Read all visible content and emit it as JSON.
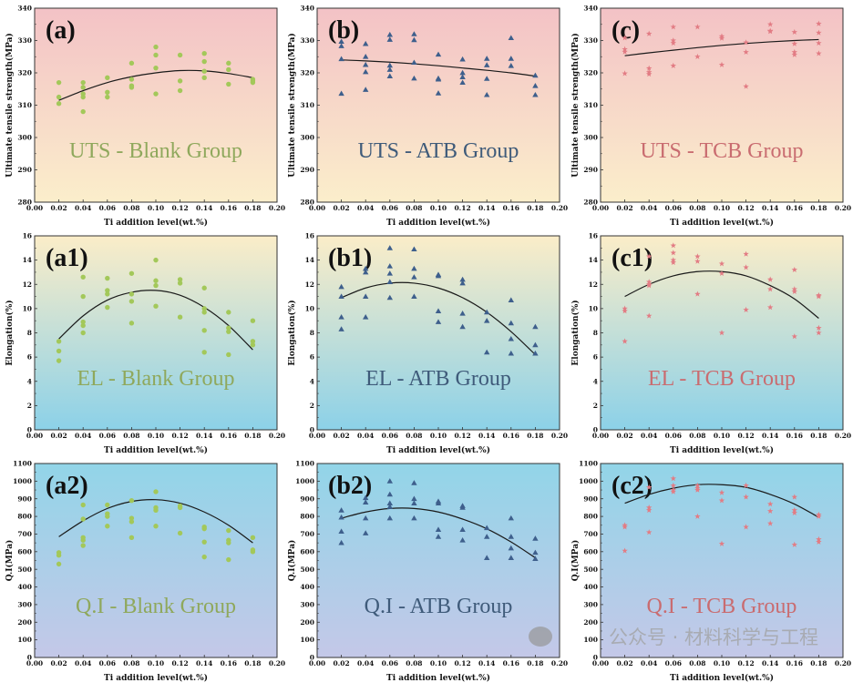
{
  "colors": {
    "blank_marker": "#a3c85a",
    "blank_text": "#8fa85c",
    "atb_marker": "#3e5f8c",
    "atb_text": "#3f5b7a",
    "tcb_marker": "#e27c84",
    "tcb_text": "#c96c70",
    "row1_bg": [
      "#f3c2c6",
      "#fbeecb"
    ],
    "row2_bg": [
      "#fbedc8",
      "#8cd1e8"
    ],
    "row3_bg": [
      "#92d5e8",
      "#c4c8e8"
    ],
    "fit_line": "#1a1a1a"
  },
  "watermark": "公众号 · 材料科学与工程",
  "chart_data": [
    {
      "type": "scatter",
      "panel_label": "(a)",
      "group_label": "UTS - Blank Group",
      "ylabel": "Ultimate tensile strength(MPa)",
      "xlabel": "Ti addition level(wt.%)",
      "xlim": [
        0,
        0.2
      ],
      "ylim": [
        280,
        340
      ],
      "ystep": 10,
      "marker": "circle",
      "group": "blank",
      "row": 0,
      "col": 0,
      "points": [
        {
          "x": 0.02,
          "y": [
            317,
            312.5,
            310.5
          ]
        },
        {
          "x": 0.04,
          "y": [
            317,
            315.5,
            313.5,
            312.5,
            308
          ]
        },
        {
          "x": 0.06,
          "y": [
            318.5,
            314,
            312.5
          ]
        },
        {
          "x": 0.08,
          "y": [
            323,
            318,
            316,
            315.5
          ]
        },
        {
          "x": 0.1,
          "y": [
            328,
            325.5,
            321.5,
            313.5
          ]
        },
        {
          "x": 0.12,
          "y": [
            325.5,
            317.5,
            314.5
          ]
        },
        {
          "x": 0.14,
          "y": [
            326,
            323.5,
            320.5,
            318.5
          ]
        },
        {
          "x": 0.16,
          "y": [
            323,
            321,
            316.5
          ]
        },
        {
          "x": 0.18,
          "y": [
            318,
            317.5,
            317
          ]
        }
      ],
      "fit": [
        311.5,
        314.5,
        317,
        318.8,
        320,
        320.7,
        320.6,
        319.8,
        318.5
      ]
    },
    {
      "type": "scatter",
      "panel_label": "(b)",
      "group_label": "UTS - ATB Group",
      "ylabel": "Ultimate tensile strength(MPa)",
      "xlabel": "Ti addition level(wt.%)",
      "xlim": [
        0,
        0.2
      ],
      "ylim": [
        280,
        340
      ],
      "ystep": 10,
      "marker": "triangle",
      "group": "atb",
      "row": 0,
      "col": 1,
      "points": [
        {
          "x": 0.02,
          "y": [
            329.7,
            328.3,
            324.3,
            313.6
          ]
        },
        {
          "x": 0.04,
          "y": [
            329,
            325,
            322.5,
            320.3,
            314.8
          ]
        },
        {
          "x": 0.06,
          "y": [
            331.8,
            330.3,
            322.3,
            321,
            319
          ]
        },
        {
          "x": 0.08,
          "y": [
            332,
            330.2,
            323.2,
            318.3
          ]
        },
        {
          "x": 0.1,
          "y": [
            325.7,
            318.3,
            318,
            313.7
          ]
        },
        {
          "x": 0.12,
          "y": [
            324.2,
            320,
            318.7,
            317
          ]
        },
        {
          "x": 0.14,
          "y": [
            324.4,
            322.4,
            318.2,
            313.2
          ]
        },
        {
          "x": 0.16,
          "y": [
            330.8,
            324.4,
            322.2
          ]
        },
        {
          "x": 0.18,
          "y": [
            319.2,
            316,
            313.2
          ]
        }
      ],
      "fit": [
        324,
        323.7,
        323.3,
        322.8,
        322.2,
        321.5,
        320.8,
        320,
        319
      ]
    },
    {
      "type": "scatter",
      "panel_label": "(c)",
      "group_label": "UTS - TCB Group",
      "ylabel": "Ultimate tensile strength(MPa)",
      "xlabel": "Ti addition level(wt.%)",
      "xlim": [
        0,
        0.2
      ],
      "ylim": [
        280,
        340
      ],
      "ystep": 10,
      "marker": "star",
      "group": "tcb",
      "row": 0,
      "col": 2,
      "points": [
        {
          "x": 0.02,
          "y": [
            330.8,
            327.3,
            326.5,
            319.8
          ]
        },
        {
          "x": 0.04,
          "y": [
            332.1,
            321.4,
            320.2,
            319.6
          ]
        },
        {
          "x": 0.06,
          "y": [
            334.2,
            330,
            329.2,
            322.2
          ]
        },
        {
          "x": 0.08,
          "y": [
            334.2,
            325
          ]
        },
        {
          "x": 0.1,
          "y": [
            331.3,
            330.7,
            322.5
          ]
        },
        {
          "x": 0.12,
          "y": [
            329.4,
            326.4,
            315.8
          ]
        },
        {
          "x": 0.14,
          "y": [
            335,
            333,
            332.8
          ]
        },
        {
          "x": 0.16,
          "y": [
            332.6,
            329,
            326.4,
            325.6
          ]
        },
        {
          "x": 0.18,
          "y": [
            335.2,
            332.4,
            329.2,
            326
          ]
        }
      ],
      "fit": [
        325.3,
        326.2,
        327,
        327.8,
        328.5,
        329.1,
        329.6,
        330,
        330.3
      ]
    },
    {
      "type": "scatter",
      "panel_label": "(a1)",
      "group_label": "EL - Blank Group",
      "ylabel": "Elongation(%)",
      "xlabel": "Ti addition level(wt.%)",
      "xlim": [
        0,
        0.2
      ],
      "ylim": [
        0,
        16
      ],
      "ystep": 2,
      "marker": "circle",
      "group": "blank",
      "row": 1,
      "col": 0,
      "points": [
        {
          "x": 0.02,
          "y": [
            7.3,
            6.5,
            5.7
          ]
        },
        {
          "x": 0.04,
          "y": [
            12.6,
            11,
            8.9,
            8.6,
            8
          ]
        },
        {
          "x": 0.06,
          "y": [
            12.5,
            11.5,
            11.2,
            10.1
          ]
        },
        {
          "x": 0.08,
          "y": [
            12.9,
            11.2,
            10.6,
            8.8
          ]
        },
        {
          "x": 0.1,
          "y": [
            14,
            12.3,
            11.9,
            10.2
          ]
        },
        {
          "x": 0.12,
          "y": [
            12.4,
            12.1,
            9.3
          ]
        },
        {
          "x": 0.14,
          "y": [
            11.7,
            10,
            9.7,
            8.2,
            6.4
          ]
        },
        {
          "x": 0.16,
          "y": [
            9.7,
            8.4,
            8.1,
            6.2
          ]
        },
        {
          "x": 0.18,
          "y": [
            9,
            7.3,
            7
          ]
        }
      ],
      "fit": [
        7.5,
        9.4,
        10.7,
        11.35,
        11.5,
        11.1,
        10.1,
        8.6,
        6.6
      ]
    },
    {
      "type": "scatter",
      "panel_label": "(b1)",
      "group_label": "EL - ATB Group",
      "ylabel": "Elongation(%)",
      "xlabel": "Ti addition level(wt.%)",
      "xlim": [
        0,
        0.2
      ],
      "ylim": [
        0,
        16
      ],
      "ystep": 2,
      "marker": "triangle",
      "group": "atb",
      "row": 1,
      "col": 1,
      "points": [
        {
          "x": 0.02,
          "y": [
            11.8,
            11,
            9.3,
            8.3
          ]
        },
        {
          "x": 0.04,
          "y": [
            13.3,
            13,
            11,
            9.3
          ]
        },
        {
          "x": 0.06,
          "y": [
            15,
            13.5,
            12.9,
            12.2,
            10.9
          ]
        },
        {
          "x": 0.08,
          "y": [
            14.9,
            13.3,
            12.6,
            11
          ]
        },
        {
          "x": 0.1,
          "y": [
            12.8,
            12.7,
            9.8,
            8.9
          ]
        },
        {
          "x": 0.12,
          "y": [
            12.4,
            12.1,
            9.6,
            8.5
          ]
        },
        {
          "x": 0.14,
          "y": [
            9.7,
            9,
            6.4
          ]
        },
        {
          "x": 0.16,
          "y": [
            10.7,
            8.8,
            7.5,
            6.3
          ]
        },
        {
          "x": 0.18,
          "y": [
            8.5,
            7,
            6.3
          ]
        }
      ],
      "fit": [
        10.9,
        11.7,
        12.1,
        12.1,
        11.7,
        10.9,
        9.7,
        8.1,
        6.2
      ]
    },
    {
      "type": "scatter",
      "panel_label": "(c1)",
      "group_label": "EL - TCB Group",
      "ylabel": "Elongation(%)",
      "xlabel": "Ti addition level(wt.%)",
      "xlim": [
        0,
        0.2
      ],
      "ylim": [
        0,
        16
      ],
      "ystep": 2,
      "marker": "star",
      "group": "tcb",
      "row": 1,
      "col": 2,
      "points": [
        {
          "x": 0.02,
          "y": [
            10,
            9.8,
            7.3
          ]
        },
        {
          "x": 0.04,
          "y": [
            14.3,
            12.2,
            12,
            11.9,
            9.4
          ]
        },
        {
          "x": 0.06,
          "y": [
            15.2,
            14.6,
            14,
            13.8
          ]
        },
        {
          "x": 0.08,
          "y": [
            14.3,
            13.9,
            11.2
          ]
        },
        {
          "x": 0.1,
          "y": [
            13.7,
            12.9,
            8
          ]
        },
        {
          "x": 0.12,
          "y": [
            14.5,
            13.4,
            9.9
          ]
        },
        {
          "x": 0.14,
          "y": [
            12.4,
            11.6,
            10.1
          ]
        },
        {
          "x": 0.16,
          "y": [
            13.2,
            11.6,
            11.4,
            7.7
          ]
        },
        {
          "x": 0.18,
          "y": [
            11.1,
            11,
            8.4,
            8
          ]
        }
      ],
      "fit": [
        11,
        12,
        12.7,
        13.05,
        13.05,
        12.7,
        11.9,
        10.8,
        9.2
      ]
    },
    {
      "type": "scatter",
      "panel_label": "(a2)",
      "group_label": "Q.I - Blank Group",
      "ylabel": "Q.I(MPa)",
      "xlabel": "Ti addition level(wt.%)",
      "xlim": [
        0,
        0.2
      ],
      "ylim": [
        0,
        1100
      ],
      "ystep": 100,
      "marker": "circle",
      "group": "blank",
      "row": 2,
      "col": 0,
      "points": [
        {
          "x": 0.02,
          "y": [
            595,
            580,
            530
          ]
        },
        {
          "x": 0.04,
          "y": [
            865,
            785,
            680,
            665,
            635
          ]
        },
        {
          "x": 0.06,
          "y": [
            865,
            815,
            800,
            745
          ]
        },
        {
          "x": 0.08,
          "y": [
            890,
            790,
            770,
            680
          ]
        },
        {
          "x": 0.1,
          "y": [
            940,
            850,
            835,
            745
          ]
        },
        {
          "x": 0.12,
          "y": [
            860,
            850,
            705
          ]
        },
        {
          "x": 0.14,
          "y": [
            740,
            730,
            655,
            570
          ]
        },
        {
          "x": 0.16,
          "y": [
            720,
            665,
            650,
            555
          ]
        },
        {
          "x": 0.18,
          "y": [
            680,
            610,
            600
          ]
        }
      ],
      "fit": [
        685,
        775,
        845,
        885,
        895,
        875,
        825,
        750,
        650
      ]
    },
    {
      "type": "scatter",
      "panel_label": "(b2)",
      "group_label": "Q.I - ATB Group",
      "ylabel": "Q.I(MPa)",
      "xlabel": "Ti addition level(wt.%)",
      "xlim": [
        0,
        0.2
      ],
      "ylim": [
        0,
        1100
      ],
      "ystep": 100,
      "marker": "triangle",
      "group": "atb",
      "row": 2,
      "col": 1,
      "points": [
        {
          "x": 0.02,
          "y": [
            835,
            795,
            715,
            650
          ]
        },
        {
          "x": 0.04,
          "y": [
            905,
            880,
            790,
            705
          ]
        },
        {
          "x": 0.06,
          "y": [
            1000,
            925,
            875,
            855,
            790
          ]
        },
        {
          "x": 0.08,
          "y": [
            990,
            900,
            875,
            790
          ]
        },
        {
          "x": 0.1,
          "y": [
            885,
            875,
            725,
            685
          ]
        },
        {
          "x": 0.12,
          "y": [
            860,
            850,
            725,
            665
          ]
        },
        {
          "x": 0.14,
          "y": [
            735,
            685,
            565
          ]
        },
        {
          "x": 0.16,
          "y": [
            790,
            685,
            620,
            565
          ]
        },
        {
          "x": 0.18,
          "y": [
            675,
            595,
            560
          ]
        }
      ],
      "fit": [
        790,
        825,
        845,
        845,
        825,
        785,
        730,
        655,
        565
      ]
    },
    {
      "type": "scatter",
      "panel_label": "(c2)",
      "group_label": "Q.I - TCB Group",
      "ylabel": "Q.I(MPa)",
      "xlabel": "Ti addition level(wt.%)",
      "xlim": [
        0,
        0.2
      ],
      "ylim": [
        0,
        1100
      ],
      "ystep": 100,
      "marker": "star",
      "group": "tcb",
      "row": 2,
      "col": 2,
      "points": [
        {
          "x": 0.02,
          "y": [
            750,
            740,
            605
          ]
        },
        {
          "x": 0.04,
          "y": [
            965,
            850,
            835,
            710
          ]
        },
        {
          "x": 0.06,
          "y": [
            1015,
            975,
            950,
            940
          ]
        },
        {
          "x": 0.08,
          "y": [
            975,
            960,
            950,
            800
          ]
        },
        {
          "x": 0.1,
          "y": [
            935,
            890,
            645
          ]
        },
        {
          "x": 0.12,
          "y": [
            975,
            910,
            740
          ]
        },
        {
          "x": 0.14,
          "y": [
            870,
            830,
            760
          ]
        },
        {
          "x": 0.16,
          "y": [
            910,
            835,
            820,
            640
          ]
        },
        {
          "x": 0.18,
          "y": [
            810,
            800,
            670,
            655
          ]
        }
      ],
      "fit": [
        875,
        925,
        960,
        980,
        980,
        965,
        925,
        870,
        795
      ]
    }
  ]
}
